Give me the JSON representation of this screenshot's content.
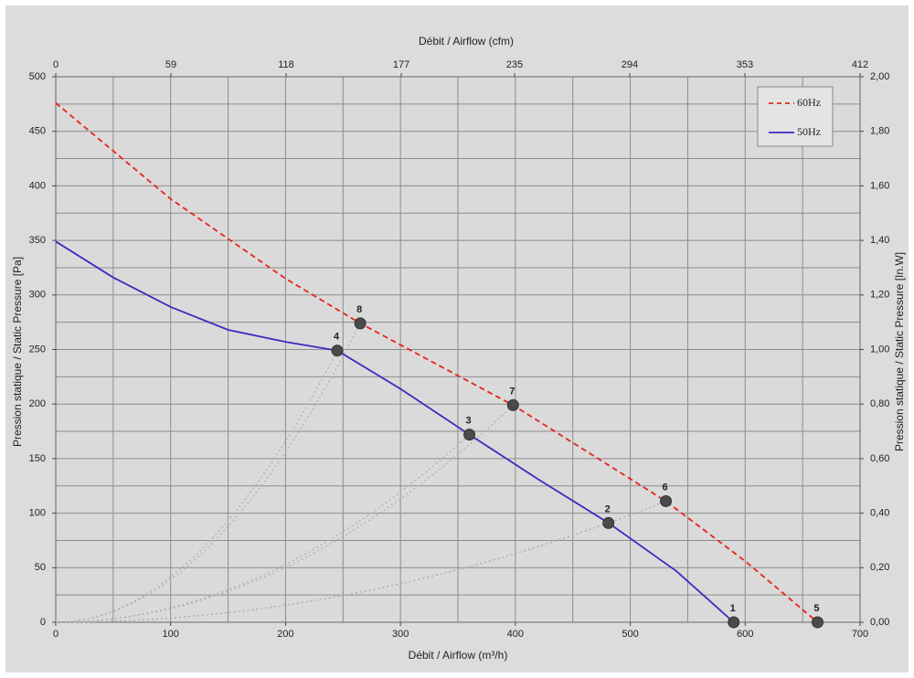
{
  "chart_data": {
    "type": "line",
    "xlabel": "Débit / Airflow (m³/h)",
    "x2label": "Débit / Airflow (cfm)",
    "ylabel": "Pression statique / Static Pressure [Pa]",
    "y2label": "Pression statique / Static Pressure [In.W]",
    "xlim": [
      0,
      700
    ],
    "xticks": [
      0,
      100,
      200,
      300,
      400,
      500,
      600,
      700
    ],
    "x2lim": [
      0,
      412
    ],
    "x2ticks": [
      0,
      59,
      118,
      177,
      235,
      294,
      353,
      412
    ],
    "ylim": [
      0,
      500
    ],
    "yticks": [
      0,
      50,
      100,
      150,
      200,
      250,
      300,
      350,
      400,
      450,
      500
    ],
    "y2lim": [
      0,
      2
    ],
    "y2ticks": [
      {
        "value": 0,
        "label": "0,00"
      },
      {
        "value": 0.2,
        "label": "0,20"
      },
      {
        "value": 0.4,
        "label": "0,40"
      },
      {
        "value": 0.6,
        "label": "0,60"
      },
      {
        "value": 0.8,
        "label": "0,80"
      },
      {
        "value": 1,
        "label": "1,00"
      },
      {
        "value": 1.2,
        "label": "1,20"
      },
      {
        "value": 1.4,
        "label": "1,40"
      },
      {
        "value": 1.6,
        "label": "1,60"
      },
      {
        "value": 1.8,
        "label": "1,80"
      },
      {
        "value": 2,
        "label": "2,00"
      }
    ],
    "xgrid": [
      0,
      50,
      100,
      150,
      200,
      250,
      300,
      350,
      400,
      450,
      500,
      550,
      600,
      650,
      700
    ],
    "ygrid": [
      0,
      25,
      50,
      75,
      100,
      125,
      150,
      175,
      200,
      225,
      250,
      275,
      300,
      325,
      350,
      375,
      400,
      425,
      450,
      475,
      500
    ],
    "grid": true,
    "legend": "upper right",
    "series": [
      {
        "name": "60Hz",
        "color": "#e8231b",
        "dashed": true,
        "x": [
          0,
          100,
          200,
          265,
          398,
          531,
          600,
          663
        ],
        "values": [
          476,
          388,
          315,
          274,
          199,
          111,
          56,
          0
        ]
      },
      {
        "name": "50Hz",
        "color": "#3a2cc0",
        "dashed": false,
        "x": [
          0,
          50,
          100,
          150,
          200,
          245,
          300,
          360,
          420,
          481,
          540,
          590
        ],
        "values": [
          349,
          316,
          289,
          268,
          257,
          249,
          214,
          172,
          131,
          91,
          47,
          0
        ]
      }
    ],
    "points": [
      {
        "label": "1",
        "x": 590,
        "y": 0
      },
      {
        "label": "2",
        "x": 481,
        "y": 91
      },
      {
        "label": "3",
        "x": 360,
        "y": 172
      },
      {
        "label": "4",
        "x": 245,
        "y": 249
      },
      {
        "label": "5",
        "x": 663,
        "y": 0
      },
      {
        "label": "6",
        "x": 531,
        "y": 111
      },
      {
        "label": "7",
        "x": 398,
        "y": 199
      },
      {
        "label": "8",
        "x": 265,
        "y": 274
      }
    ]
  }
}
